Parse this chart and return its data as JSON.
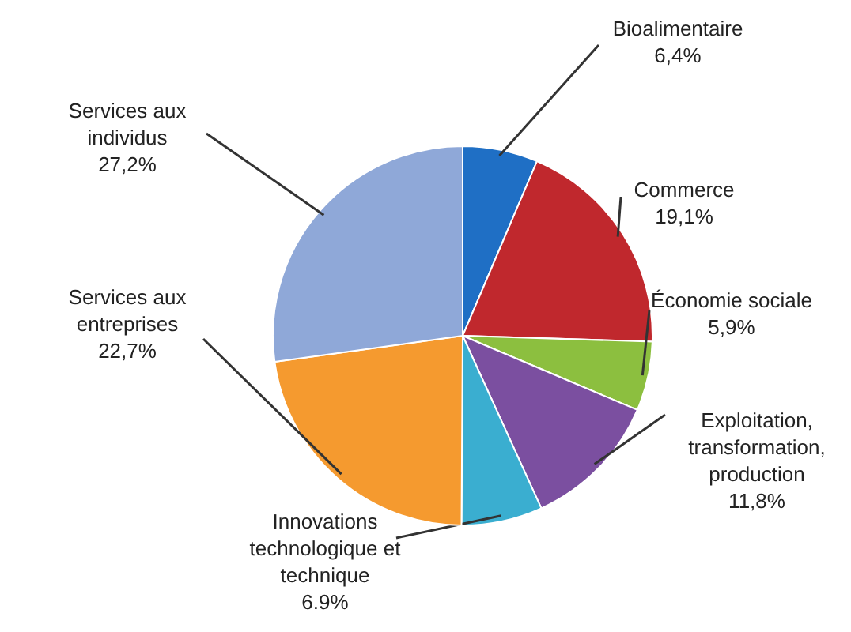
{
  "chart_data": {
    "type": "pie",
    "categories": [
      "Bioalimentaire",
      "Commerce",
      "Économie sociale",
      "Exploitation,\ntransformation,\nproduction",
      "Innovations\ntechnologique et\ntechnique",
      "Services aux\nentreprises",
      "Services aux\nindividus"
    ],
    "values": [
      6.4,
      19.1,
      5.9,
      11.8,
      6.9,
      22.7,
      27.2
    ],
    "value_labels": [
      "6,4%",
      "19,1%",
      "5,9%",
      "11,8%",
      "6.9%",
      "22,7%",
      "27,2%"
    ],
    "colors": [
      "#1f6fc5",
      "#c0282d",
      "#8cbf3f",
      "#7b4fa0",
      "#3aaed0",
      "#f59a2f",
      "#8fa8d8"
    ]
  }
}
